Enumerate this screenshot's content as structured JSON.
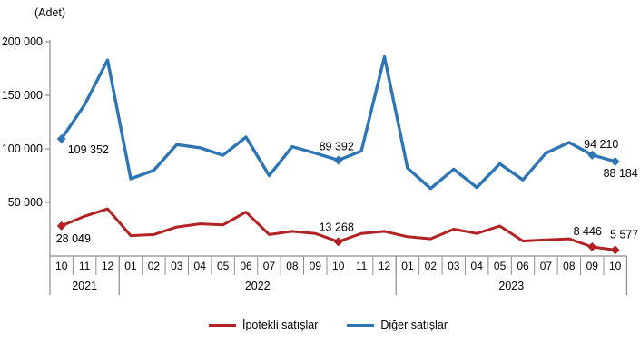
{
  "unit_label": "(Adet)",
  "colors": {
    "ipotekli": "#B22222",
    "diger": "#2E75B6",
    "axis": "#8C8C8C",
    "text": "#000000"
  },
  "legend": {
    "items": [
      {
        "name": "İpotekli satışlar",
        "color_key": "ipotekli"
      },
      {
        "name": "Diğer satışlar",
        "color_key": "diger"
      }
    ]
  },
  "chart_data": {
    "type": "line",
    "title": "",
    "unit_label": "(Adet)",
    "xlabel": "",
    "ylabel": "(Adet)",
    "ylim": [
      0,
      200000
    ],
    "ytick_values": [
      50000,
      100000,
      150000,
      200000
    ],
    "ytick_labels": [
      "50 000",
      "100 000",
      "150 000",
      "200 000"
    ],
    "grid": false,
    "legend_position": "bottom",
    "x_months": [
      "10",
      "11",
      "12",
      "01",
      "02",
      "03",
      "04",
      "05",
      "06",
      "07",
      "08",
      "09",
      "10",
      "11",
      "12",
      "01",
      "02",
      "03",
      "04",
      "05",
      "06",
      "07",
      "08",
      "09",
      "10"
    ],
    "year_groups": [
      {
        "label": "2021",
        "count": 3
      },
      {
        "label": "2022",
        "count": 12
      },
      {
        "label": "2023",
        "count": 10
      }
    ],
    "series": [
      {
        "name": "Diğer satışlar",
        "color": "#2E75B6",
        "values": [
          109352,
          141000,
          183000,
          72000,
          80000,
          104000,
          101000,
          94000,
          111000,
          75000,
          102000,
          96000,
          89392,
          98000,
          186000,
          82000,
          63000,
          81000,
          64000,
          86000,
          71000,
          96000,
          106000,
          94210,
          88184
        ],
        "point_labels": [
          {
            "index": 0,
            "text": "109 352",
            "dx": 7,
            "dy": 16,
            "anchor": "start"
          },
          {
            "index": 12,
            "text": "89 392",
            "dx": -2,
            "dy": -11,
            "anchor": "middle"
          },
          {
            "index": 23,
            "text": "94 210",
            "dx": 10,
            "dy": -8,
            "anchor": "middle"
          },
          {
            "index": 24,
            "text": "88 184",
            "dx": 6,
            "dy": 17,
            "anchor": "middle"
          }
        ]
      },
      {
        "name": "İpotekli satışlar",
        "color": "#B22222",
        "values": [
          28049,
          37000,
          44000,
          19000,
          20000,
          27000,
          30000,
          29000,
          41000,
          20000,
          23000,
          21000,
          13268,
          21000,
          23000,
          18000,
          16000,
          25000,
          21000,
          28000,
          14000,
          15000,
          16000,
          8446,
          5577
        ],
        "point_labels": [
          {
            "index": 0,
            "text": "28 049",
            "dx": -6,
            "dy": 18,
            "anchor": "start"
          },
          {
            "index": 12,
            "text": "13 268",
            "dx": -2,
            "dy": -12,
            "anchor": "middle"
          },
          {
            "index": 23,
            "text": "8 446",
            "dx": -5,
            "dy": -13,
            "anchor": "middle"
          },
          {
            "index": 24,
            "text": "5 577",
            "dx": 10,
            "dy": -13,
            "anchor": "middle"
          }
        ]
      }
    ]
  }
}
